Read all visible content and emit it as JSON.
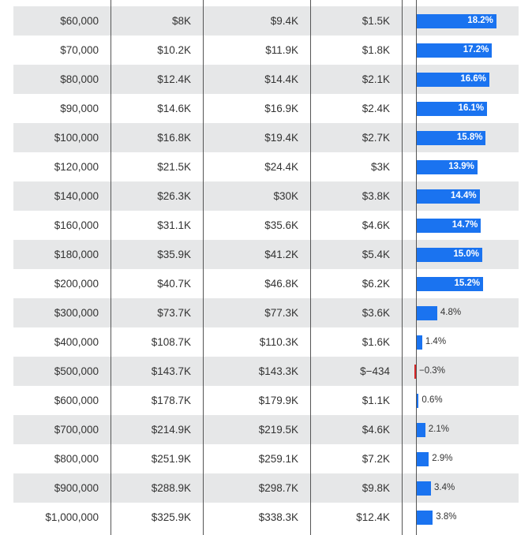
{
  "colors": {
    "positive": "#1a73f0",
    "negative": "#d62728",
    "row_alt": "#e6e7e8",
    "divider": "#555555"
  },
  "chart_data": {
    "type": "table",
    "columns_note": "",
    "rows": [
      {
        "income": "$60,000",
        "a": "$8K",
        "b": "$9.4K",
        "diff": "$1.5K",
        "pct": 18.2,
        "pct_label": "18.2%"
      },
      {
        "income": "$70,000",
        "a": "$10.2K",
        "b": "$11.9K",
        "diff": "$1.8K",
        "pct": 17.2,
        "pct_label": "17.2%"
      },
      {
        "income": "$80,000",
        "a": "$12.4K",
        "b": "$14.4K",
        "diff": "$2.1K",
        "pct": 16.6,
        "pct_label": "16.6%"
      },
      {
        "income": "$90,000",
        "a": "$14.6K",
        "b": "$16.9K",
        "diff": "$2.4K",
        "pct": 16.1,
        "pct_label": "16.1%"
      },
      {
        "income": "$100,000",
        "a": "$16.8K",
        "b": "$19.4K",
        "diff": "$2.7K",
        "pct": 15.8,
        "pct_label": "15.8%"
      },
      {
        "income": "$120,000",
        "a": "$21.5K",
        "b": "$24.4K",
        "diff": "$3K",
        "pct": 13.9,
        "pct_label": "13.9%"
      },
      {
        "income": "$140,000",
        "a": "$26.3K",
        "b": "$30K",
        "diff": "$3.8K",
        "pct": 14.4,
        "pct_label": "14.4%"
      },
      {
        "income": "$160,000",
        "a": "$31.1K",
        "b": "$35.6K",
        "diff": "$4.6K",
        "pct": 14.7,
        "pct_label": "14.7%"
      },
      {
        "income": "$180,000",
        "a": "$35.9K",
        "b": "$41.2K",
        "diff": "$5.4K",
        "pct": 15.0,
        "pct_label": "15.0%"
      },
      {
        "income": "$200,000",
        "a": "$40.7K",
        "b": "$46.8K",
        "diff": "$6.2K",
        "pct": 15.2,
        "pct_label": "15.2%"
      },
      {
        "income": "$300,000",
        "a": "$73.7K",
        "b": "$77.3K",
        "diff": "$3.6K",
        "pct": 4.8,
        "pct_label": "4.8%"
      },
      {
        "income": "$400,000",
        "a": "$108.7K",
        "b": "$110.3K",
        "diff": "$1.6K",
        "pct": 1.4,
        "pct_label": "1.4%"
      },
      {
        "income": "$500,000",
        "a": "$143.7K",
        "b": "$143.3K",
        "diff": "$−434",
        "pct": -0.3,
        "pct_label": "−0.3%"
      },
      {
        "income": "$600,000",
        "a": "$178.7K",
        "b": "$179.9K",
        "diff": "$1.1K",
        "pct": 0.6,
        "pct_label": "0.6%"
      },
      {
        "income": "$700,000",
        "a": "$214.9K",
        "b": "$219.5K",
        "diff": "$4.6K",
        "pct": 2.1,
        "pct_label": "2.1%"
      },
      {
        "income": "$800,000",
        "a": "$251.9K",
        "b": "$259.1K",
        "diff": "$7.2K",
        "pct": 2.9,
        "pct_label": "2.9%"
      },
      {
        "income": "$900,000",
        "a": "$288.9K",
        "b": "$298.7K",
        "diff": "$9.8K",
        "pct": 3.4,
        "pct_label": "3.4%"
      },
      {
        "income": "$1,000,000",
        "a": "$325.9K",
        "b": "$338.3K",
        "diff": "$12.4K",
        "pct": 3.8,
        "pct_label": "3.8%"
      }
    ]
  }
}
